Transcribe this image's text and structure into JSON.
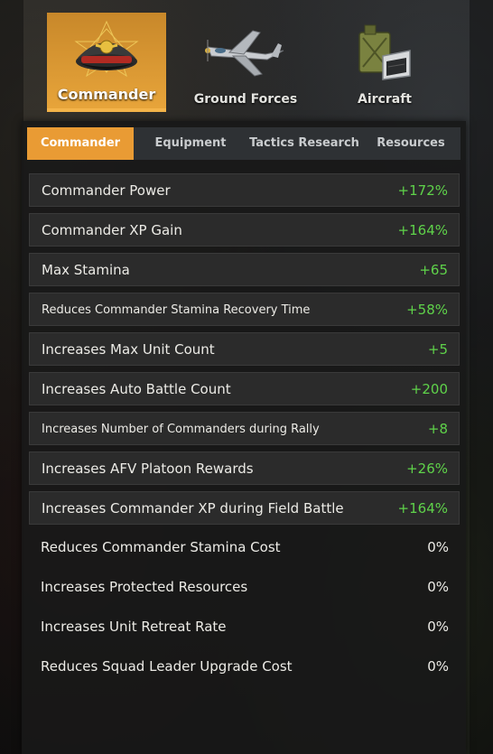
{
  "top_tabs": [
    {
      "label": "Commander",
      "icon": "officer-cap-icon",
      "active": true
    },
    {
      "label": "Ground Forces",
      "icon": "fighter-plane-icon",
      "active": false
    },
    {
      "label": "Aircraft",
      "icon": "fuel-canister-icon",
      "active": false
    }
  ],
  "sub_tabs": [
    {
      "label": "Commander",
      "active": true
    },
    {
      "label": "Equipment",
      "active": false
    },
    {
      "label": "Tactics Research",
      "active": false
    },
    {
      "label": "Resources",
      "active": false
    }
  ],
  "stats": [
    {
      "name": "Commander Power",
      "value": "+172%"
    },
    {
      "name": "Commander XP Gain",
      "value": "+164%"
    },
    {
      "name": "Max Stamina",
      "value": "+65"
    },
    {
      "name": "Reduces Commander Stamina Recovery Time",
      "value": "+58%"
    },
    {
      "name": "Increases Max Unit Count",
      "value": "+5"
    },
    {
      "name": "Increases Auto Battle Count",
      "value": "+200"
    },
    {
      "name": "Increases Number of Commanders during Rally",
      "value": "+8"
    },
    {
      "name": "Increases AFV Platoon Rewards",
      "value": "+26%"
    },
    {
      "name": "Increases Commander XP during Field Battle",
      "value": "+164%"
    },
    {
      "name": "Reduces Commander Stamina Cost",
      "value": "0%"
    },
    {
      "name": "Increases Protected Resources",
      "value": "0%"
    },
    {
      "name": "Increases Unit Retreat Rate",
      "value": "0%"
    },
    {
      "name": "Reduces Squad Leader Upgrade Cost",
      "value": "0%"
    }
  ],
  "colors": {
    "accent": "#e99b34",
    "positive": "#5fd34a",
    "neutral": "#ecebe6"
  }
}
